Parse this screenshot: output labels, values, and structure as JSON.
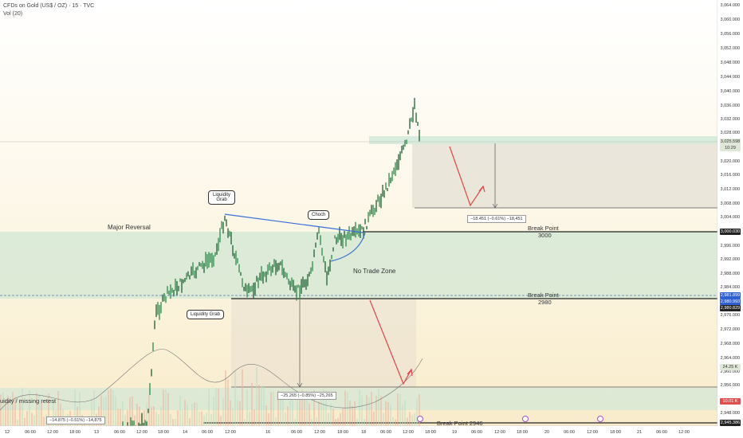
{
  "header": {
    "symbol": "CFDs on Gold (US$ / OZ) · 15 · TVC",
    "volume": "Vol (20)"
  },
  "price_axis": {
    "ticks": [
      "3,064.000",
      "3,060.000",
      "3,056.000",
      "3,052.000",
      "3,048.000",
      "3,044.000",
      "3,040.000",
      "3,036.000",
      "3,032.000",
      "3,028.000",
      "3,020.000",
      "3,016.000",
      "3,012.000",
      "3,008.000",
      "3,004.000",
      "2,996.000",
      "2,992.000",
      "2,988.000",
      "2,984.000",
      "2,976.000",
      "2,972.000",
      "2,968.000",
      "2,964.000",
      "2,960.000",
      "2,956.000",
      "2,948.000"
    ],
    "badges": [
      {
        "text": "3,025.598",
        "color": "#dfe7d8",
        "textcolor": "#333"
      },
      {
        "text": "10:29",
        "color": "#dfe7d8",
        "textcolor": "#333"
      },
      {
        "text": "3,000.030",
        "color": "#222222",
        "textcolor": "#fff"
      },
      {
        "text": "2,981.899",
        "color": "#2f5fd0",
        "textcolor": "#fff"
      },
      {
        "text": "2,980.993",
        "color": "#2f5fd0",
        "textcolor": "#fff"
      },
      {
        "text": "2,980.829",
        "color": "#222222",
        "textcolor": "#fff"
      },
      {
        "text": "24.25 K",
        "color": "#dfe7d8",
        "textcolor": "#333"
      },
      {
        "text": "10.01 K",
        "color": "#e15050",
        "textcolor": "#fff"
      },
      {
        "text": "2,945.386",
        "color": "#222222",
        "textcolor": "#fff"
      }
    ]
  },
  "time_axis": [
    "12",
    "06:00",
    "12:00",
    "18:00",
    "13",
    "06:00",
    "12:00",
    "18:00",
    "14",
    "06:00",
    "12:00",
    "16",
    "06:00",
    "12:00",
    "18:00",
    "18",
    "06:00",
    "12:00",
    "18:00",
    "19",
    "06:00",
    "12:00",
    "18:00",
    "20",
    "06:00",
    "12:00",
    "18:00",
    "21",
    "06:00",
    "12:00"
  ],
  "annotations": {
    "major_reversal": "Major Reversal",
    "liquidity_grab_top": "Liquidity Grab",
    "choch": "Choch",
    "no_trade_zone": "No Trade Zone",
    "liquidity_grab_bottom": "Liquidity Grab",
    "break_point_title": "Break Point",
    "break_point_3000": "3000",
    "break_point_2980": "2980",
    "break_point_2946": "Break Point 2946",
    "missing_retest": "uidity / missing retest",
    "measure_top": "−18.451 (−0.61%) −18,451",
    "measure_mid": "−25.265 (−0.85%) −25,265",
    "measure_left": "−14.875 (−0.51%) −14,875"
  },
  "colors": {
    "candle_up": "#2d8a4a",
    "zone_green": "#cfe8d4",
    "zone_grey": "#e6e1d6",
    "arrow_red": "#e04646",
    "trend_blue": "#3a6fd8"
  }
}
